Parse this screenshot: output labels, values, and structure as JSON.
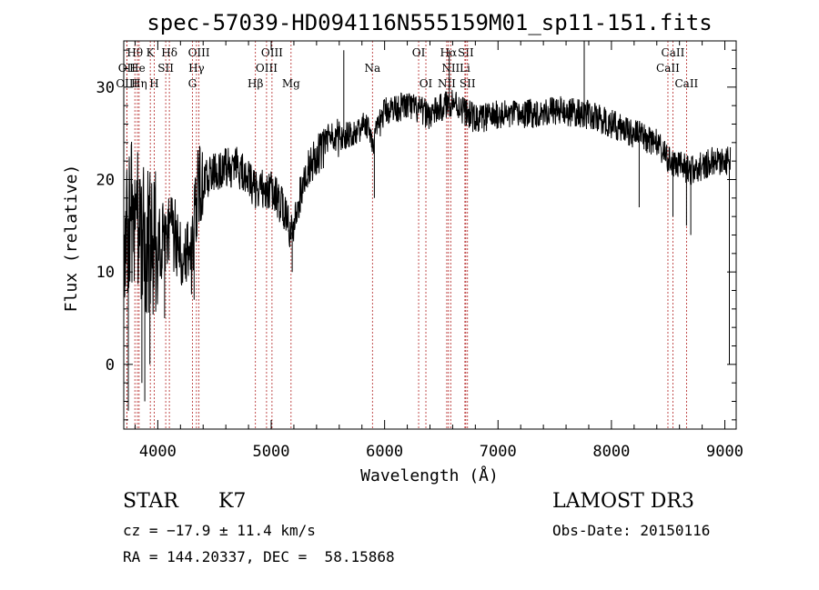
{
  "title": "spec-57039-HD094116N555159M01_sp11-151.fits",
  "colors": {
    "spectrum": "#000000",
    "line_marker": "#b22222",
    "axis": "#000000"
  },
  "info": {
    "class": "STAR",
    "subclass": "K7",
    "survey": "LAMOST DR3",
    "cz": "cz = −17.9 ± 11.4 km/s",
    "obs_date": "Obs-Date: 20150116",
    "radec": "RA = 144.20337, DEC =  58.15868"
  },
  "chart_data": {
    "type": "line",
    "title": "spec-57039-HD094116N555159M01_sp11-151.fits",
    "xlabel": "Wavelength (Å)",
    "ylabel": "Flux (relative)",
    "xlim": [
      3700,
      9100
    ],
    "ylim": [
      -7,
      35
    ],
    "xticks": [
      4000,
      5000,
      6000,
      7000,
      8000,
      9000
    ],
    "yticks": [
      0,
      10,
      20,
      30
    ],
    "grid": false,
    "legend": "none",
    "continuum": [
      [
        3700,
        15
      ],
      [
        3800,
        17
      ],
      [
        3900,
        13
      ],
      [
        4000,
        13
      ],
      [
        4100,
        15
      ],
      [
        4200,
        13
      ],
      [
        4300,
        12
      ],
      [
        4350,
        19
      ],
      [
        4500,
        21
      ],
      [
        4700,
        21.5
      ],
      [
        4850,
        19
      ],
      [
        5000,
        19
      ],
      [
        5100,
        17
      ],
      [
        5180,
        14
      ],
      [
        5300,
        21
      ],
      [
        5500,
        24
      ],
      [
        5700,
        25
      ],
      [
        5850,
        26
      ],
      [
        5900,
        24
      ],
      [
        6000,
        27.5
      ],
      [
        6200,
        28
      ],
      [
        6400,
        27
      ],
      [
        6600,
        28.5
      ],
      [
        6800,
        26.5
      ],
      [
        7000,
        27
      ],
      [
        7200,
        27
      ],
      [
        7500,
        27.5
      ],
      [
        7800,
        27
      ],
      [
        8000,
        26
      ],
      [
        8200,
        25
      ],
      [
        8400,
        24
      ],
      [
        8500,
        22
      ],
      [
        8700,
        21
      ],
      [
        8900,
        22
      ],
      [
        9050,
        22
      ]
    ],
    "spikes": [
      [
        3740,
        -5
      ],
      [
        3790,
        12
      ],
      [
        3860,
        -2
      ],
      [
        3885,
        -4
      ],
      [
        3930,
        0
      ],
      [
        4060,
        5
      ],
      [
        4320,
        7
      ],
      [
        5185,
        10
      ],
      [
        5640,
        34
      ],
      [
        5910,
        18
      ],
      [
        6570,
        34
      ],
      [
        7760,
        35
      ],
      [
        8245,
        17
      ],
      [
        8542,
        16
      ],
      [
        8662,
        15
      ],
      [
        8700,
        14
      ],
      [
        9040,
        0
      ]
    ],
    "lines": [
      {
        "name": "Hθ",
        "wave": 3798,
        "row": 0
      },
      {
        "name": "OII",
        "wave": 3727,
        "row": 1
      },
      {
        "name": "He",
        "wave": 3820,
        "row": 1
      },
      {
        "name": "OIII",
        "wave": 3727,
        "row": 2
      },
      {
        "name": "Hη",
        "wave": 3835,
        "row": 2
      },
      {
        "name": "K",
        "wave": 3934,
        "row": 0
      },
      {
        "name": "H",
        "wave": 3969,
        "row": 2
      },
      {
        "name": "SII",
        "wave": 4070,
        "row": 1
      },
      {
        "name": "Hδ",
        "wave": 4102,
        "row": 0
      },
      {
        "name": "OIII",
        "wave": 4363,
        "row": 0
      },
      {
        "name": "Hγ",
        "wave": 4341,
        "row": 1
      },
      {
        "name": "G",
        "wave": 4305,
        "row": 2
      },
      {
        "name": "Hβ",
        "wave": 4861,
        "row": 2
      },
      {
        "name": "OIII",
        "wave": 5007,
        "row": 0
      },
      {
        "name": "OIII",
        "wave": 4959,
        "row": 1
      },
      {
        "name": "Mg",
        "wave": 5175,
        "row": 2
      },
      {
        "name": "Na",
        "wave": 5893,
        "row": 1
      },
      {
        "name": "OI",
        "wave": 6300,
        "row": 0
      },
      {
        "name": "OI",
        "wave": 6364,
        "row": 2
      },
      {
        "name": "Hα",
        "wave": 6563,
        "row": 0
      },
      {
        "name": "NII",
        "wave": 6583,
        "row": 1
      },
      {
        "name": "NII",
        "wave": 6548,
        "row": 2
      },
      {
        "name": "SII",
        "wave": 6716,
        "row": 0
      },
      {
        "name": "Li",
        "wave": 6708,
        "row": 1
      },
      {
        "name": "SII",
        "wave": 6731,
        "row": 2
      },
      {
        "name": "CaII",
        "wave": 8542,
        "row": 0
      },
      {
        "name": "CaII",
        "wave": 8498,
        "row": 1
      },
      {
        "name": "CaII",
        "wave": 8662,
        "row": 2
      }
    ]
  }
}
